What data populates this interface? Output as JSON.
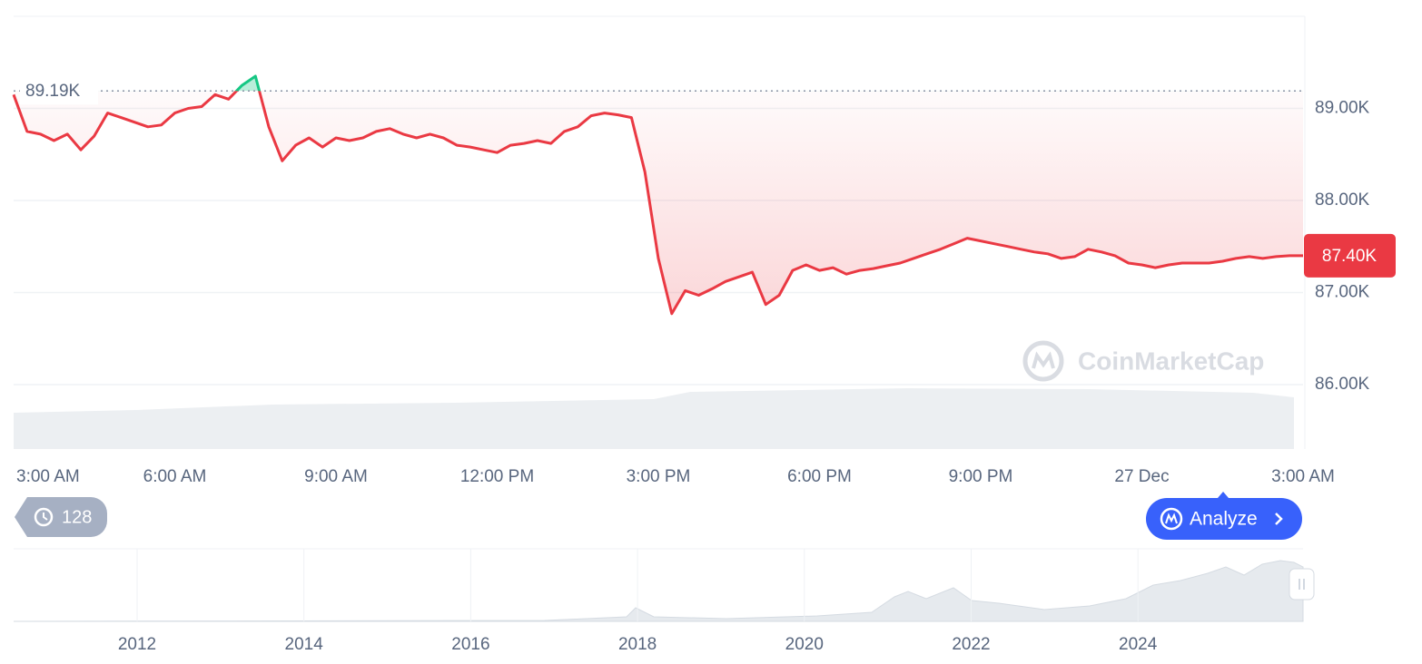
{
  "chart_data": {
    "type": "line",
    "categories": [
      "3:00 AM",
      null,
      null,
      null,
      null,
      null,
      null,
      null,
      null,
      null,
      null,
      null,
      "6:00 AM",
      null,
      null,
      null,
      null,
      null,
      null,
      null,
      null,
      null,
      null,
      null,
      "9:00 AM",
      null,
      null,
      null,
      null,
      null,
      null,
      null,
      null,
      null,
      null,
      null,
      "12:00 PM",
      null,
      null,
      null,
      null,
      null,
      null,
      null,
      null,
      null,
      null,
      null,
      "3:00 PM",
      null,
      null,
      null,
      null,
      null,
      null,
      null,
      null,
      null,
      null,
      null,
      "6:00 PM",
      null,
      null,
      null,
      null,
      null,
      null,
      null,
      null,
      null,
      null,
      null,
      "9:00 PM",
      null,
      null,
      null,
      null,
      null,
      null,
      null,
      null,
      null,
      null,
      null,
      "27 Dec",
      null,
      null,
      null,
      null,
      null,
      null,
      null,
      null,
      null,
      null,
      null,
      "3:00 AM"
    ],
    "values": [
      89.15,
      88.75,
      88.72,
      88.65,
      88.72,
      88.55,
      88.7,
      88.95,
      88.9,
      88.85,
      88.8,
      88.82,
      88.95,
      89.0,
      89.02,
      89.15,
      89.1,
      89.25,
      89.35,
      88.8,
      88.43,
      88.6,
      88.68,
      88.58,
      88.68,
      88.65,
      88.68,
      88.75,
      88.78,
      88.72,
      88.68,
      88.72,
      88.68,
      88.6,
      88.58,
      88.55,
      88.52,
      88.6,
      88.62,
      88.65,
      88.62,
      88.75,
      88.8,
      88.92,
      88.95,
      88.93,
      88.9,
      88.31,
      87.37,
      86.77,
      87.02,
      86.97,
      87.04,
      87.12,
      87.17,
      87.22,
      86.87,
      86.97,
      87.24,
      87.3,
      87.24,
      87.27,
      87.2,
      87.24,
      87.26,
      87.29,
      87.32,
      87.37,
      87.42,
      87.47,
      87.53,
      87.59,
      87.56,
      87.53,
      87.5,
      87.47,
      87.44,
      87.42,
      87.37,
      87.39,
      87.47,
      87.44,
      87.4,
      87.32,
      87.3,
      87.27,
      87.3,
      87.32,
      87.32,
      87.32,
      87.34,
      87.37,
      87.39,
      87.37,
      87.39,
      87.4,
      87.4
    ],
    "color_down": "#ea3943",
    "color_up": "#16c784",
    "ylim": [
      85.3,
      90.0
    ],
    "yticks": [
      {
        "value": 86,
        "label": "86.00K"
      },
      {
        "value": 87,
        "label": "87.00K"
      },
      {
        "value": 88,
        "label": "88.00K"
      },
      {
        "value": 89,
        "label": "89.00K"
      }
    ],
    "grid": true,
    "reference": {
      "value": 89.19,
      "label": "89.19K"
    },
    "current": {
      "value": 87.4,
      "label": "87.40K"
    }
  },
  "watermark": "CoinMarketCap",
  "history_badge": "128",
  "analyze_button": "Analyze",
  "navigator": {
    "categories": [
      "2012",
      "2014",
      "2016",
      "2018",
      "2020",
      "2022",
      "2024"
    ]
  }
}
